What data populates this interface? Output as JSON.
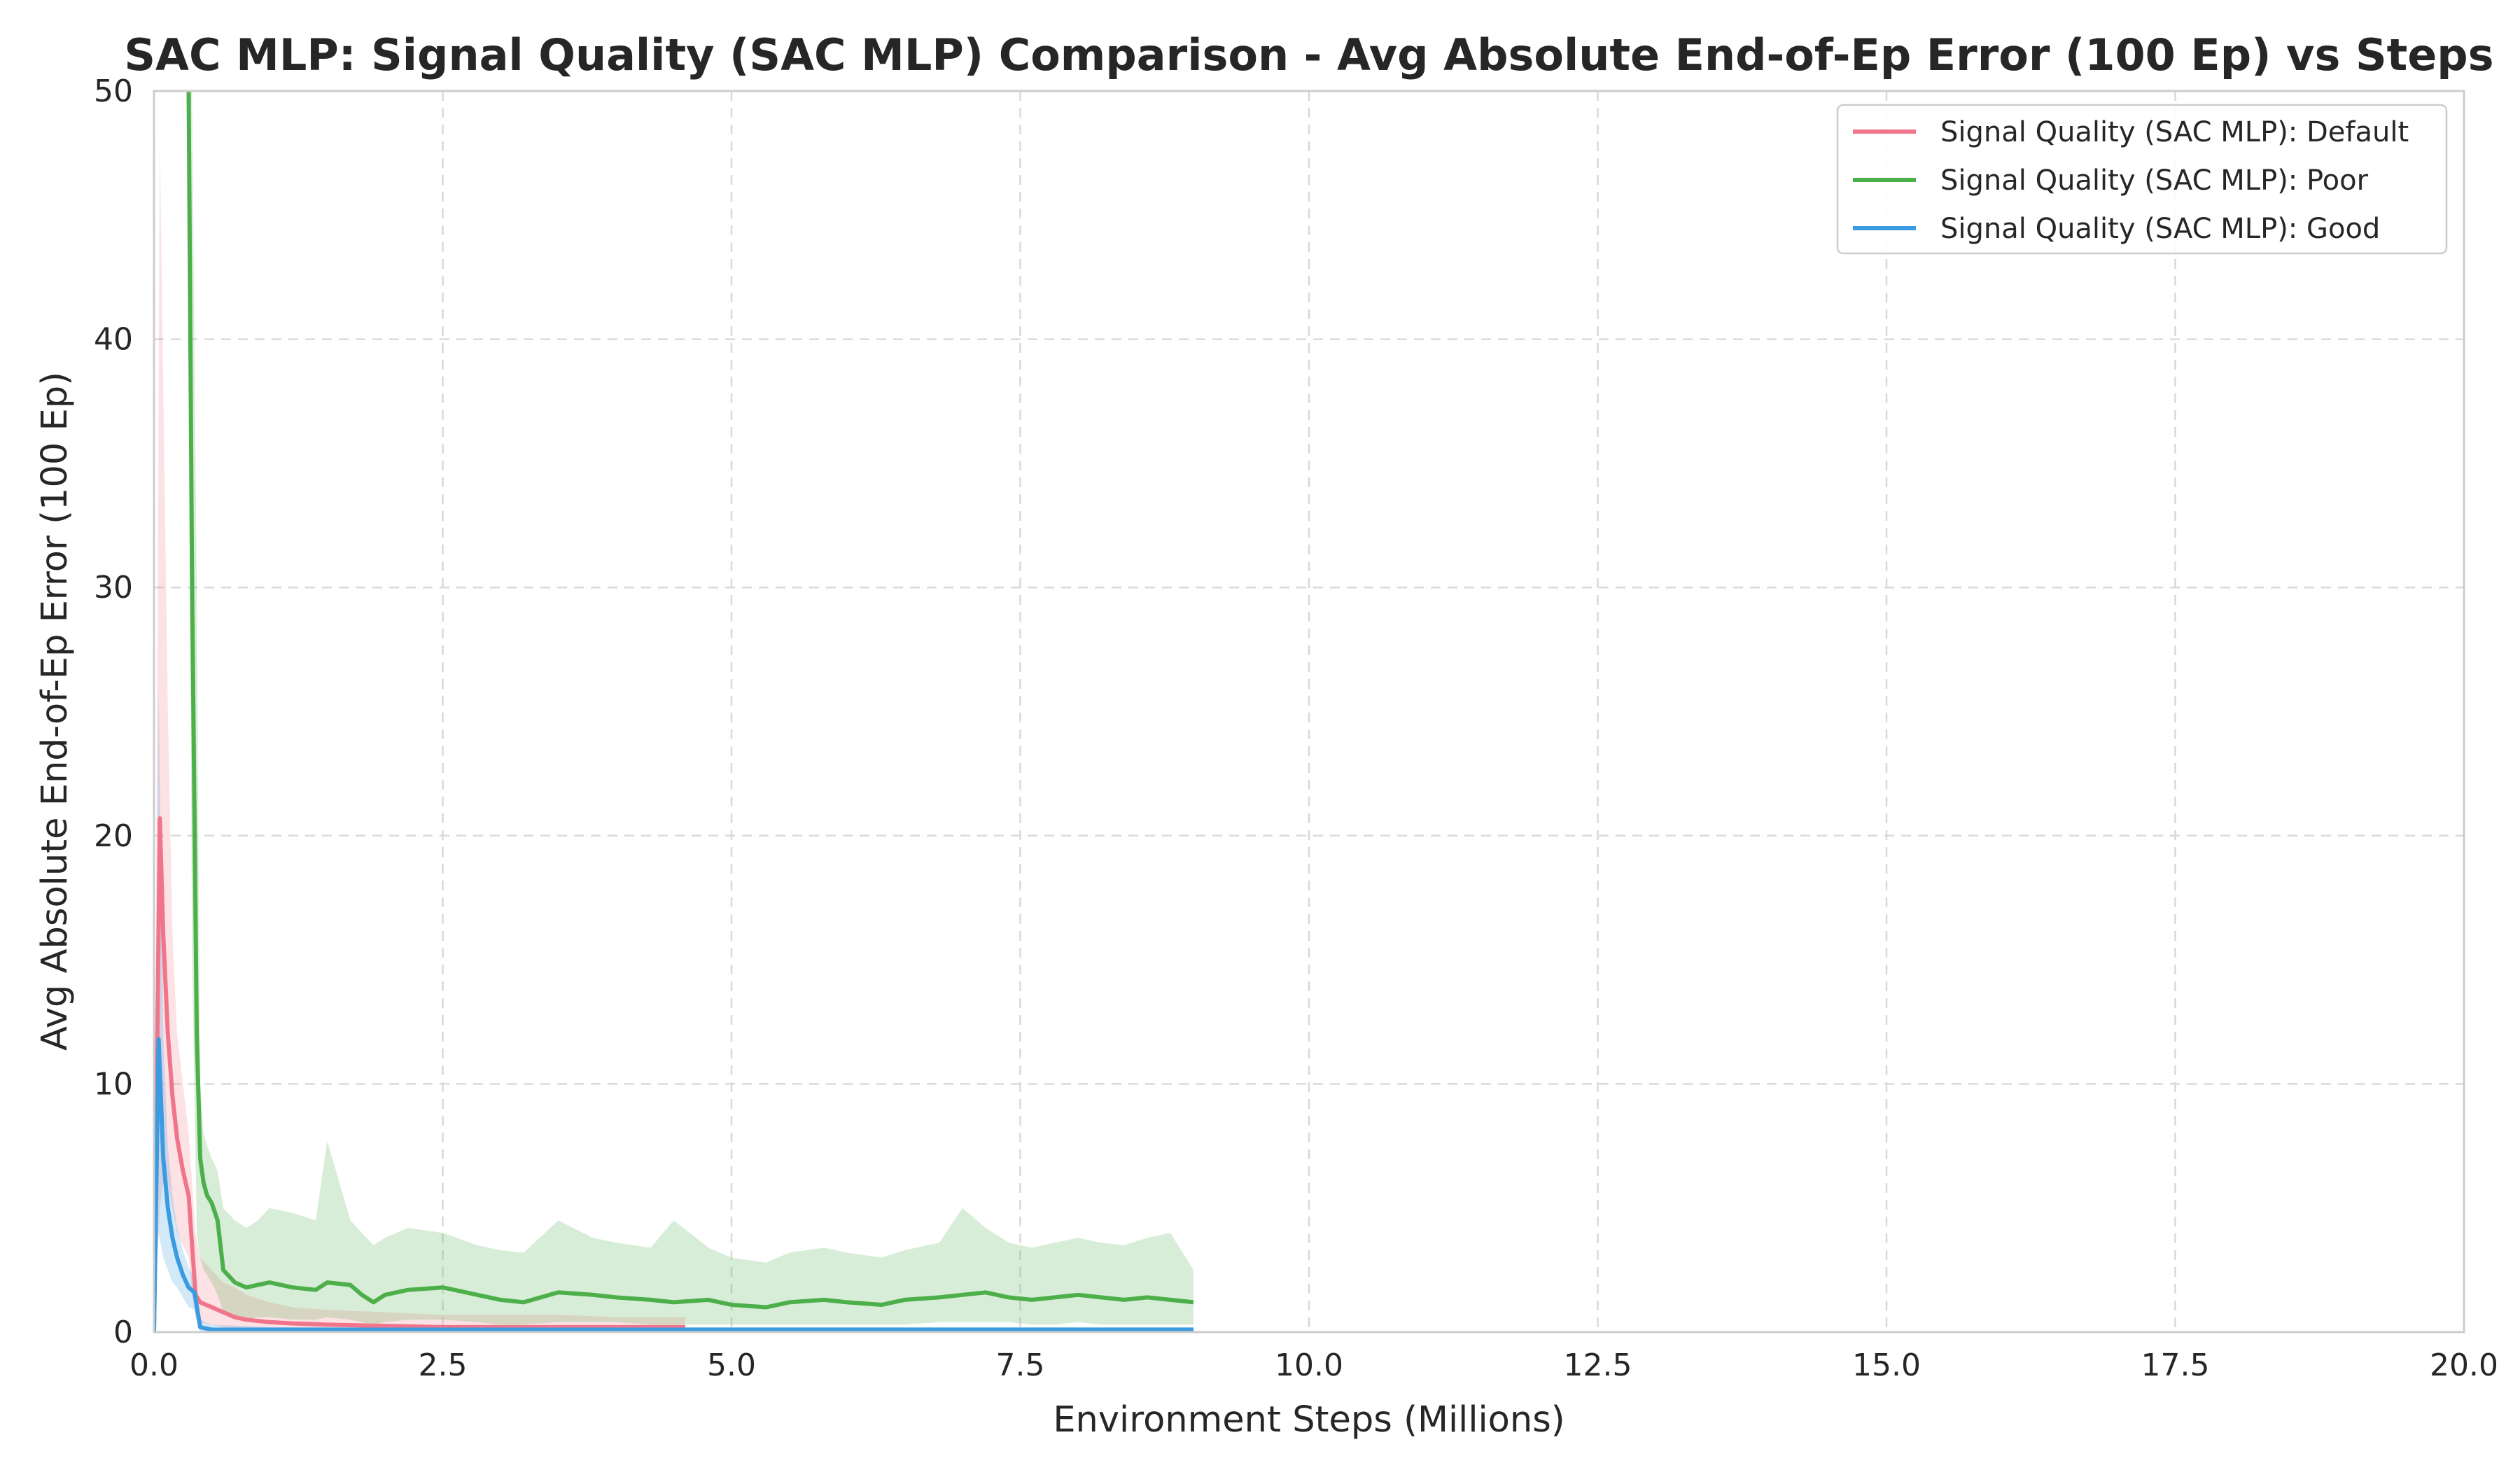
{
  "chart_data": {
    "type": "line",
    "title": "SAC MLP: Signal Quality (SAC MLP) Comparison - Avg Absolute End-of-Ep Error (100 Ep) vs Steps",
    "xlabel": "Environment Steps (Millions)",
    "ylabel": "Avg Absolute End-of-Ep Error (100 Ep)",
    "xlim": [
      0,
      20
    ],
    "ylim": [
      0,
      50
    ],
    "xticks": [
      "0.0",
      "2.5",
      "5.0",
      "7.5",
      "10.0",
      "12.5",
      "15.0",
      "17.5",
      "20.0"
    ],
    "yticks": [
      "0",
      "10",
      "20",
      "30",
      "40",
      "50"
    ],
    "grid": true,
    "legend_position": "top-right",
    "series": [
      {
        "name": "Signal Quality (SAC MLP): Default",
        "color": "#f0758a",
        "x": [
          0.0,
          0.05,
          0.08,
          0.12,
          0.16,
          0.2,
          0.25,
          0.3,
          0.33,
          0.36,
          0.4,
          0.5,
          0.6,
          0.7,
          0.8,
          1.0,
          1.2,
          1.5,
          2.0,
          2.5,
          3.0,
          3.5,
          4.0,
          4.6
        ],
        "y": [
          0.0,
          20.7,
          16.0,
          12.0,
          9.5,
          7.8,
          6.5,
          5.5,
          3.5,
          1.5,
          1.2,
          1.0,
          0.8,
          0.6,
          0.5,
          0.4,
          0.35,
          0.3,
          0.25,
          0.2,
          0.2,
          0.2,
          0.2,
          0.2
        ],
        "band_upper": [
          0.0,
          48.0,
          38.0,
          25.0,
          16.0,
          12.0,
          10.0,
          8.0,
          6.0,
          4.0,
          3.0,
          2.5,
          2.0,
          1.8,
          1.5,
          1.2,
          1.0,
          0.9,
          0.8,
          0.7,
          0.7,
          0.7,
          0.6,
          0.6
        ],
        "band_lower": [
          0.0,
          5.0,
          6.0,
          6.0,
          5.0,
          4.0,
          3.5,
          3.0,
          1.5,
          0.5,
          0.4,
          0.3,
          0.2,
          0.1,
          0.1,
          0.1,
          0.05,
          0.05,
          0.05,
          0.05,
          0.05,
          0.05,
          0.05,
          0.05
        ]
      },
      {
        "name": "Signal Quality (SAC MLP): Poor",
        "color": "#4daf4a",
        "x": [
          0.3,
          0.33,
          0.37,
          0.4,
          0.43,
          0.46,
          0.5,
          0.55,
          0.6,
          0.7,
          0.8,
          0.9,
          1.0,
          1.2,
          1.4,
          1.5,
          1.7,
          1.8,
          1.9,
          2.0,
          2.2,
          2.5,
          2.8,
          3.0,
          3.2,
          3.5,
          3.8,
          4.0,
          4.3,
          4.5,
          4.8,
          5.0,
          5.3,
          5.5,
          5.8,
          6.0,
          6.3,
          6.5,
          6.8,
          7.0,
          7.2,
          7.4,
          7.6,
          7.8,
          8.0,
          8.2,
          8.4,
          8.6,
          8.8,
          9.0
        ],
        "y": [
          50.0,
          30.0,
          12.0,
          7.0,
          6.0,
          5.5,
          5.2,
          4.5,
          2.5,
          2.0,
          1.8,
          1.9,
          2.0,
          1.8,
          1.7,
          2.0,
          1.9,
          1.5,
          1.2,
          1.5,
          1.7,
          1.8,
          1.5,
          1.3,
          1.2,
          1.6,
          1.5,
          1.4,
          1.3,
          1.2,
          1.3,
          1.1,
          1.0,
          1.2,
          1.3,
          1.2,
          1.1,
          1.3,
          1.4,
          1.5,
          1.6,
          1.4,
          1.3,
          1.4,
          1.5,
          1.4,
          1.3,
          1.4,
          1.3,
          1.2
        ],
        "band_upper": [
          50.0,
          50.0,
          30.0,
          10.0,
          8.0,
          7.5,
          7.0,
          6.5,
          5.0,
          4.5,
          4.2,
          4.5,
          5.0,
          4.8,
          4.5,
          7.7,
          4.5,
          4.0,
          3.5,
          3.8,
          4.2,
          4.0,
          3.5,
          3.3,
          3.2,
          4.5,
          3.8,
          3.6,
          3.4,
          4.5,
          3.4,
          3.0,
          2.8,
          3.2,
          3.4,
          3.2,
          3.0,
          3.3,
          3.6,
          5.0,
          4.2,
          3.6,
          3.4,
          3.6,
          3.8,
          3.6,
          3.5,
          3.8,
          4.0,
          2.5
        ],
        "band_lower": [
          40.0,
          15.0,
          4.0,
          3.0,
          2.5,
          2.3,
          2.0,
          1.5,
          0.8,
          0.6,
          0.5,
          0.6,
          0.6,
          0.5,
          0.5,
          0.6,
          0.5,
          0.4,
          0.3,
          0.4,
          0.5,
          0.5,
          0.4,
          0.3,
          0.3,
          0.4,
          0.4,
          0.4,
          0.3,
          0.3,
          0.3,
          0.3,
          0.3,
          0.3,
          0.3,
          0.3,
          0.3,
          0.3,
          0.4,
          0.4,
          0.4,
          0.4,
          0.3,
          0.3,
          0.4,
          0.3,
          0.3,
          0.3,
          0.3,
          0.3
        ]
      },
      {
        "name": "Signal Quality (SAC MLP): Good",
        "color": "#3a9be0",
        "x": [
          0.0,
          0.04,
          0.08,
          0.12,
          0.16,
          0.2,
          0.25,
          0.3,
          0.35,
          0.4,
          0.5,
          1.0,
          2.0,
          3.0,
          4.0,
          5.0,
          6.0,
          7.0,
          8.0,
          9.0
        ],
        "y": [
          0.0,
          11.8,
          7.0,
          5.0,
          3.8,
          3.0,
          2.3,
          1.8,
          1.6,
          0.2,
          0.1,
          0.1,
          0.1,
          0.1,
          0.1,
          0.1,
          0.1,
          0.1,
          0.1,
          0.1
        ],
        "band_upper": [
          0.0,
          26.0,
          12.0,
          7.5,
          5.5,
          4.2,
          3.3,
          2.6,
          2.2,
          0.5,
          0.3,
          0.2,
          0.2,
          0.2,
          0.2,
          0.2,
          0.2,
          0.2,
          0.2,
          0.2
        ],
        "band_lower": [
          0.0,
          4.0,
          3.0,
          2.5,
          2.0,
          1.8,
          1.4,
          1.0,
          0.9,
          0.0,
          0.0,
          0.0,
          0.0,
          0.0,
          0.0,
          0.0,
          0.0,
          0.0,
          0.0,
          0.0
        ]
      }
    ]
  }
}
